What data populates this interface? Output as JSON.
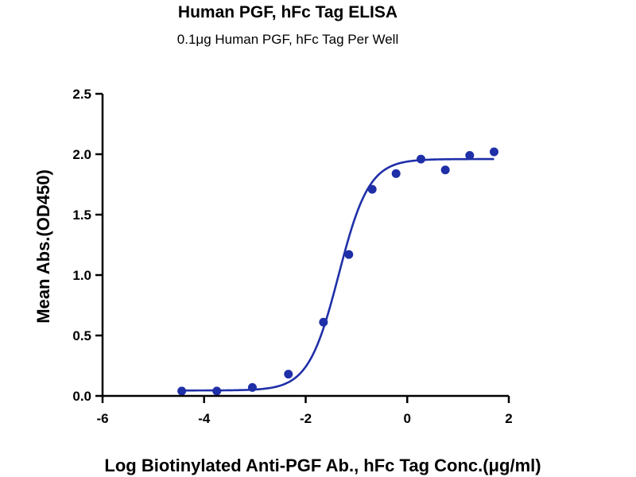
{
  "chart_data": {
    "type": "scatter",
    "title": "Human PGF, hFc Tag ELISA",
    "subtitle": "0.1μg Human PGF, hFc Tag Per Well",
    "xlabel": "Log Biotinylated Anti-PGF Ab., hFc Tag Conc.(μg/ml)",
    "ylabel": "Mean Abs.(OD450)",
    "xlim": [
      -6,
      2
    ],
    "ylim": [
      0.0,
      2.5
    ],
    "x_ticks": [
      "-6",
      "-4",
      "-2",
      "0",
      "2"
    ],
    "y_ticks": [
      "0.0",
      "0.5",
      "1.0",
      "1.5",
      "2.0",
      "2.5"
    ],
    "grid": false,
    "legend": "none",
    "colors": {
      "series": "#1f2fa8",
      "axis": "#000000"
    },
    "series": [
      {
        "points": [
          {
            "x": -4.44,
            "y": 0.04
          },
          {
            "x": -3.75,
            "y": 0.04
          },
          {
            "x": -3.05,
            "y": 0.07
          },
          {
            "x": -2.34,
            "y": 0.18
          },
          {
            "x": -1.65,
            "y": 0.61
          },
          {
            "x": -1.15,
            "y": 1.17
          },
          {
            "x": -0.69,
            "y": 1.71
          },
          {
            "x": -0.22,
            "y": 1.84
          },
          {
            "x": 0.27,
            "y": 1.96
          },
          {
            "x": 0.75,
            "y": 1.87
          },
          {
            "x": 1.23,
            "y": 1.99
          },
          {
            "x": 1.71,
            "y": 2.02
          }
        ],
        "fit": {
          "model": "4PL",
          "bottom": 0.045,
          "top": 1.96,
          "logEC50": -1.35,
          "hill": 1.45,
          "x_range": [
            -4.44,
            1.71
          ]
        }
      }
    ]
  }
}
